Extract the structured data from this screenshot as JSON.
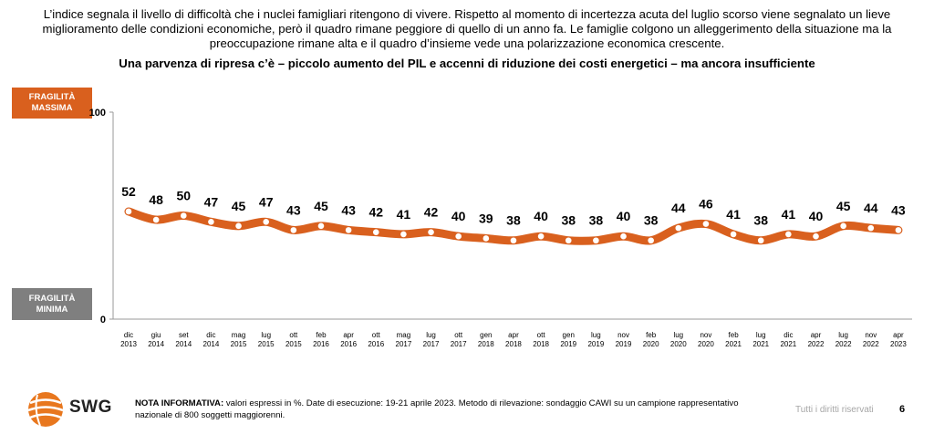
{
  "intro": "L’indice segnala il livello di difficoltà che i nuclei famigliari ritengono di vivere. Rispetto al momento di incertezza acuta del luglio scorso viene segnalato un lieve miglioramento delle condizioni economiche, però il quadro rimane peggiore di quello di un anno fa. Le famiglie colgono un alleggerimento della situazione ma la preoccupazione rimane alta e il quadro d’insieme vede una polarizzazione economica crescente.",
  "subtitle": "Una parvenza di ripresa c’è – piccolo aumento del PIL e accenni di riduzione dei costi energetici – ma ancora insufficiente",
  "badges": {
    "max_line1": "FRAGILITÀ",
    "max_line2": "MASSIMA",
    "min_line1": "FRAGILITÀ",
    "min_line2": "MINIMA"
  },
  "chart_data": {
    "type": "line",
    "categories": [
      [
        "dic",
        "2013"
      ],
      [
        "giu",
        "2014"
      ],
      [
        "set",
        "2014"
      ],
      [
        "dic",
        "2014"
      ],
      [
        "mag",
        "2015"
      ],
      [
        "lug",
        "2015"
      ],
      [
        "ott",
        "2015"
      ],
      [
        "feb",
        "2016"
      ],
      [
        "apr",
        "2016"
      ],
      [
        "ott",
        "2016"
      ],
      [
        "mag",
        "2017"
      ],
      [
        "lug",
        "2017"
      ],
      [
        "ott",
        "2017"
      ],
      [
        "gen",
        "2018"
      ],
      [
        "apr",
        "2018"
      ],
      [
        "ott",
        "2018"
      ],
      [
        "gen",
        "2019"
      ],
      [
        "lug",
        "2019"
      ],
      [
        "nov",
        "2019"
      ],
      [
        "feb",
        "2020"
      ],
      [
        "lug",
        "2020"
      ],
      [
        "nov",
        "2020"
      ],
      [
        "feb",
        "2021"
      ],
      [
        "lug",
        "2021"
      ],
      [
        "dic",
        "2021"
      ],
      [
        "apr",
        "2022"
      ],
      [
        "lug",
        "2022"
      ],
      [
        "nov",
        "2022"
      ],
      [
        "apr",
        "2023"
      ]
    ],
    "values": [
      52,
      48,
      50,
      47,
      45,
      47,
      43,
      45,
      43,
      42,
      41,
      42,
      40,
      39,
      38,
      40,
      38,
      38,
      40,
      38,
      44,
      46,
      41,
      38,
      41,
      40,
      45,
      44,
      43
    ],
    "ylim": [
      0,
      100
    ],
    "yticks": [
      "0",
      "100"
    ],
    "line_color": "#d9601e",
    "marker_color": "#ffffff",
    "data_labels": true,
    "grid": false
  },
  "footer": {
    "logo": "SWG",
    "note_label": "NOTA INFORMATIVA:",
    "note_text": " valori espressi in %. Date di esecuzione: 19-21 aprile 2023. Metodo di rilevazione: sondaggio CAWI su un campione rappresentativo nazionale di 800 soggetti maggiorenni.",
    "rights": "Tutti i diritti riservati",
    "page": "6"
  }
}
